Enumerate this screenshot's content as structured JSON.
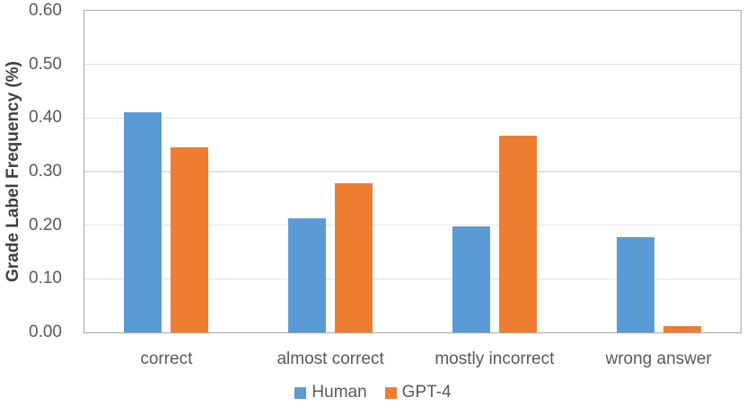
{
  "chart_data": {
    "type": "bar",
    "title": "",
    "xlabel": "",
    "ylabel": "Grade Label Frequency (%)",
    "categories": [
      "correct",
      "almost correct",
      "mostly incorrect",
      "wrong answer"
    ],
    "series": [
      {
        "name": "Human",
        "color": "#5B9BD5",
        "values": [
          0.411,
          0.213,
          0.198,
          0.178
        ]
      },
      {
        "name": "GPT-4",
        "color": "#ED7D31",
        "values": [
          0.345,
          0.279,
          0.367,
          0.011
        ]
      }
    ],
    "ylim": [
      0,
      0.6
    ],
    "ytick_labels": [
      "0.00",
      "0.10",
      "0.20",
      "0.30",
      "0.40",
      "0.50",
      "0.60"
    ],
    "grid": true,
    "legend_position": "bottom",
    "colors": {
      "gridline": "#E2E2E2",
      "plot_border": "#A6A6A6",
      "tick_text": "#595959",
      "axis_title_text": "#404040",
      "background": "#FFFFFF"
    }
  }
}
